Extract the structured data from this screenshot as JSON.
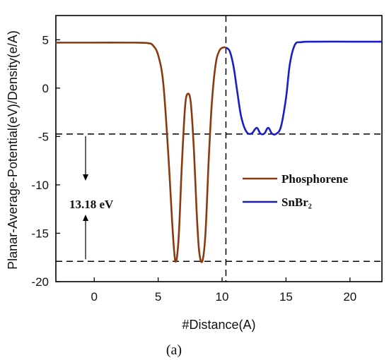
{
  "chart_data": {
    "type": "line",
    "xlabel": "#Distance(A)",
    "ylabel": "Planar-Average-Potential(eV)/Density(e/A)",
    "panel_label": "(a)",
    "xlim": [
      -3,
      22.5
    ],
    "ylim": [
      -20,
      7.5
    ],
    "xticks": [
      "0",
      "5",
      "10",
      "15",
      "20"
    ],
    "xtick_values": [
      0,
      5,
      10,
      15,
      20
    ],
    "yticks": [
      "5",
      "0",
      "-5",
      "-10",
      "-15",
      "-20"
    ],
    "ytick_values": [
      5,
      0,
      -5,
      -10,
      -15,
      -20
    ],
    "legend_position": "right-center",
    "annotation": "13.18 eV",
    "reference_lines": {
      "horizontal": [
        -4.75,
        -17.9
      ],
      "vertical": [
        10.3
      ]
    },
    "series": [
      {
        "name": "Phosphorene",
        "color": "#8B3A0F",
        "x": [
          -3,
          0,
          3,
          4.2,
          4.6,
          5.0,
          5.4,
          5.8,
          6.1,
          6.35,
          6.6,
          6.85,
          7.1,
          7.3,
          7.55,
          7.8,
          8.0,
          8.2,
          8.45,
          8.7,
          8.95,
          9.2,
          9.5,
          9.8,
          10.1,
          10.3
        ],
        "y": [
          4.7,
          4.7,
          4.7,
          4.65,
          4.4,
          3.4,
          0.5,
          -7,
          -14,
          -17.9,
          -15.5,
          -8,
          -2,
          -0.6,
          -1.5,
          -6.5,
          -12.5,
          -16.8,
          -17.9,
          -15,
          -7.5,
          -1.5,
          2.5,
          3.9,
          4.2,
          4.2
        ]
      },
      {
        "name": "SnBr₂",
        "color": "#1B1BC8",
        "x": [
          10.3,
          10.6,
          10.9,
          11.2,
          11.5,
          11.9,
          12.3,
          12.7,
          13.0,
          13.3,
          13.6,
          13.9,
          14.2,
          14.6,
          15.0,
          15.3,
          15.7,
          16.2,
          17,
          20,
          22.5
        ],
        "y": [
          4.2,
          3.8,
          2.2,
          -0.5,
          -3.0,
          -4.5,
          -4.7,
          -4.1,
          -4.7,
          -4.7,
          -4.1,
          -4.7,
          -4.75,
          -4.0,
          -1.0,
          2.5,
          4.5,
          4.75,
          4.8,
          4.8,
          4.8
        ]
      }
    ]
  }
}
